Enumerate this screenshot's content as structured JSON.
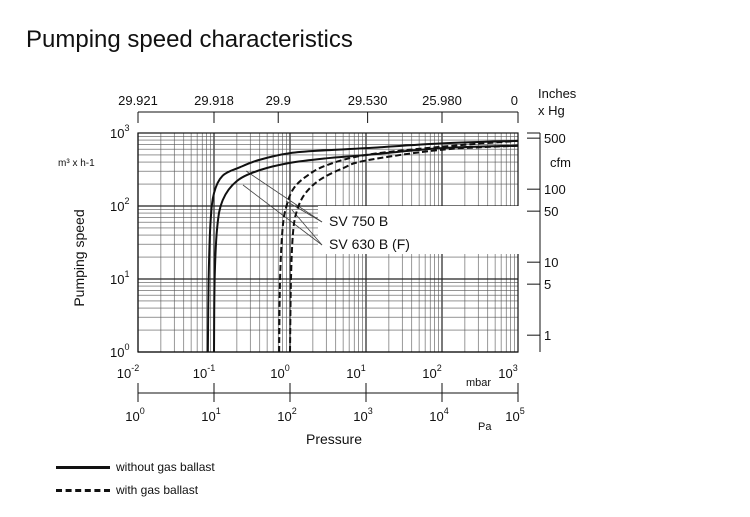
{
  "chart_data": {
    "type": "line",
    "title": "Pumping speed characteristics",
    "xlabel": "Pressure",
    "ylabel": "Pumping speed",
    "y_unit": "m³ x h-1",
    "x_unit_top": "mbar",
    "x_unit_bottom": "Pa",
    "xscale": "log",
    "yscale": "log",
    "xlim": [
      0.01,
      1000
    ],
    "ylim": [
      1,
      1000
    ],
    "x_ticks": [
      "10-2",
      "10-1",
      "100",
      "101",
      "102",
      "103"
    ],
    "x_tick_labels": [
      {
        "b": "10",
        "e": "-2"
      },
      {
        "b": "10",
        "e": "-1"
      },
      {
        "b": "10",
        "e": "0"
      },
      {
        "b": "10",
        "e": "1"
      },
      {
        "b": "10",
        "e": "2"
      },
      {
        "b": "10",
        "e": "3"
      }
    ],
    "pa_tick_labels": [
      {
        "b": "10",
        "e": "0"
      },
      {
        "b": "10",
        "e": "1"
      },
      {
        "b": "10",
        "e": "2"
      },
      {
        "b": "10",
        "e": "3"
      },
      {
        "b": "10",
        "e": "4"
      },
      {
        "b": "10",
        "e": "5"
      }
    ],
    "y_tick_labels": [
      {
        "b": "10",
        "e": "0"
      },
      {
        "b": "10",
        "e": "1"
      },
      {
        "b": "10",
        "e": "2"
      },
      {
        "b": "10",
        "e": "3"
      }
    ],
    "top_axis": {
      "label": "Inches\nx Hg",
      "label_lines": [
        "Inches",
        "x Hg"
      ],
      "ticks": [
        {
          "v": 0.01,
          "t": "29.921"
        },
        {
          "v": 0.1,
          "t": "29.918"
        },
        {
          "v": 0.7,
          "t": "29.9"
        },
        {
          "v": 10.5,
          "t": "29.530"
        },
        {
          "v": 100,
          "t": "25.980"
        },
        {
          "v": 1000,
          "t": "0"
        }
      ]
    },
    "right_axis": {
      "label": "cfm",
      "ticks": [
        {
          "v": 850,
          "t": "500"
        },
        {
          "v": 170,
          "t": "100"
        },
        {
          "v": 85,
          "t": "50"
        },
        {
          "v": 17,
          "t": "10"
        },
        {
          "v": 8.5,
          "t": "5"
        },
        {
          "v": 1.7,
          "t": "1"
        }
      ]
    },
    "series": [
      {
        "name": "SV 750 B",
        "style": "solid",
        "x": [
          0.083,
          0.085,
          0.09,
          0.1,
          0.13,
          0.22,
          0.4,
          1,
          3,
          10,
          100,
          1000
        ],
        "y": [
          1,
          10,
          60,
          150,
          260,
          340,
          430,
          530,
          580,
          620,
          720,
          780
        ]
      },
      {
        "name": "SV 630 B (F)",
        "style": "solid",
        "x": [
          0.1,
          0.102,
          0.11,
          0.13,
          0.2,
          0.4,
          1,
          3,
          10,
          100,
          1000
        ],
        "y": [
          1,
          10,
          50,
          120,
          220,
          310,
          390,
          450,
          500,
          620,
          670
        ]
      },
      {
        "name": "SV 750 B",
        "style": "dashed",
        "x": [
          0.72,
          0.74,
          0.8,
          0.9,
          1.1,
          1.6,
          3,
          10,
          100,
          1000
        ],
        "y": [
          1,
          10,
          50,
          100,
          170,
          250,
          360,
          500,
          650,
          780
        ]
      },
      {
        "name": "SV 630 B (F)",
        "style": "dashed",
        "x": [
          1.0,
          1.03,
          1.1,
          1.25,
          1.6,
          2.5,
          5,
          10,
          100,
          1000
        ],
        "y": [
          1,
          10,
          45,
          90,
          150,
          230,
          330,
          420,
          590,
          670
        ]
      }
    ],
    "annotations": [
      "SV 750 B",
      "SV 630 B (F)"
    ],
    "legend": [
      {
        "style": "solid",
        "label": "without gas ballast"
      },
      {
        "style": "dashed",
        "label": "with gas ballast"
      }
    ],
    "grid": true
  }
}
